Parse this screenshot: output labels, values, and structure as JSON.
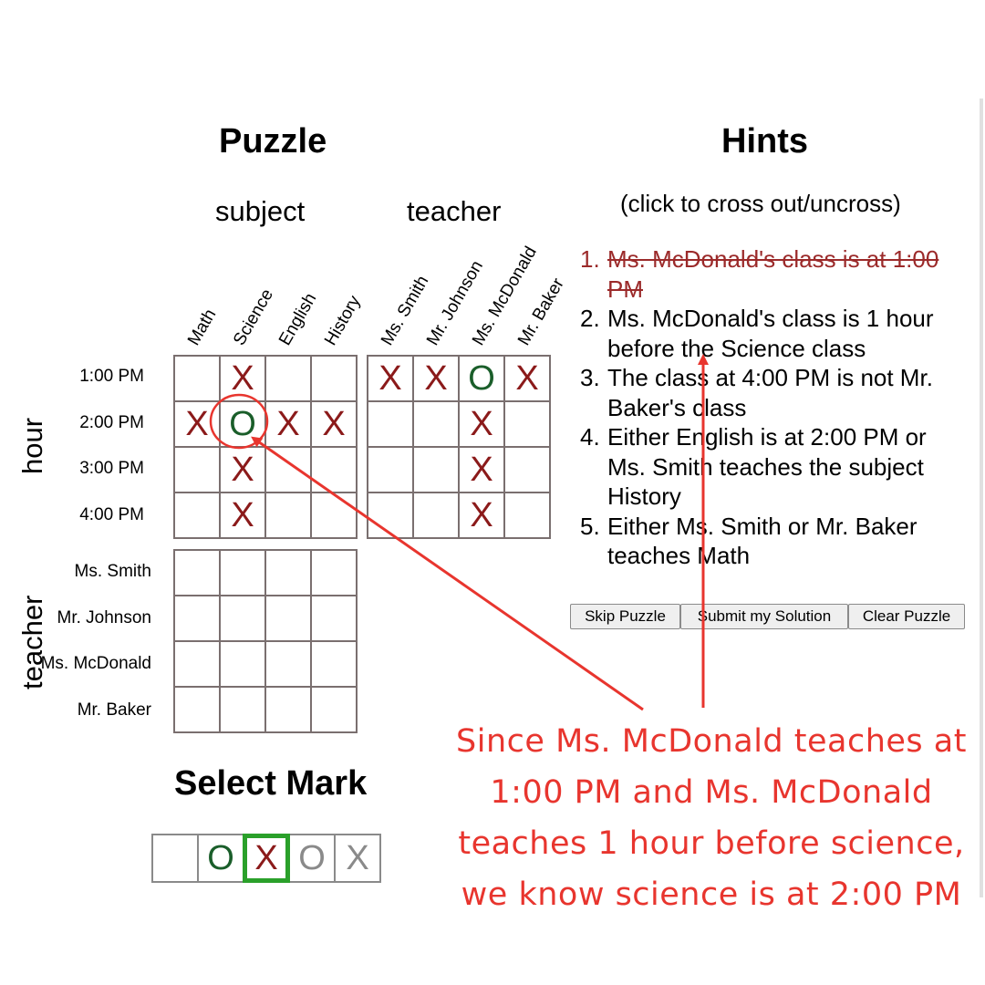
{
  "puzzle": {
    "title": "Puzzle",
    "section_subject": "subject",
    "section_teacher": "teacher",
    "axis_hour": "hour",
    "axis_teacher": "teacher",
    "subject_columns": [
      "Math",
      "Science",
      "English",
      "History"
    ],
    "teacher_columns": [
      "Ms. Smith",
      "Mr. Johnson",
      "Ms. McDonald",
      "Mr. Baker"
    ],
    "hour_rows": [
      "1:00 PM",
      "2:00 PM",
      "3:00 PM",
      "4:00 PM"
    ],
    "teacher_rows": [
      "Ms. Smith",
      "Mr. Johnson",
      "Ms. McDonald",
      "Mr. Baker"
    ],
    "hour_subject_grid": [
      [
        "",
        "X",
        "",
        ""
      ],
      [
        "X",
        "O",
        "X",
        "X"
      ],
      [
        "",
        "X",
        "",
        ""
      ],
      [
        "",
        "X",
        "",
        ""
      ]
    ],
    "hour_teacher_grid": [
      [
        "X",
        "X",
        "O",
        "X"
      ],
      [
        "",
        "",
        "X",
        ""
      ],
      [
        "",
        "",
        "X",
        ""
      ],
      [
        "",
        "",
        "X",
        ""
      ]
    ],
    "teacher_subject_grid": [
      [
        "",
        "",
        "",
        ""
      ],
      [
        "",
        "",
        "",
        ""
      ],
      [
        "",
        "",
        "",
        ""
      ],
      [
        "",
        "",
        "",
        ""
      ]
    ]
  },
  "hints": {
    "title": "Hints",
    "subtitle": "(click to cross out/uncross)",
    "items": [
      {
        "num": "1.",
        "text": "Ms. McDonald's class is at 1:00 PM",
        "crossed": true
      },
      {
        "num": "2.",
        "text": "Ms. McDonald's class is 1 hour before the Science class",
        "crossed": false
      },
      {
        "num": "3.",
        "text": "The class at 4:00 PM is not Mr. Baker's class",
        "crossed": false
      },
      {
        "num": "4.",
        "text": "Either English is at 2:00 PM or Ms. Smith teaches the subject History",
        "crossed": false
      },
      {
        "num": "5.",
        "text": "Either Ms. Smith or Mr. Baker teaches Math",
        "crossed": false
      }
    ]
  },
  "buttons": {
    "skip": "Skip Puzzle",
    "submit": "Submit my Solution",
    "clear": "Clear Puzzle"
  },
  "select_mark": {
    "title": "Select Mark",
    "options": [
      {
        "symbol": "",
        "color": "#000000"
      },
      {
        "symbol": "O",
        "color": "#1a5e2a"
      },
      {
        "symbol": "X",
        "color": "#8b1a1a"
      },
      {
        "symbol": "O",
        "color": "#8a8a8a"
      },
      {
        "symbol": "X",
        "color": "#8a8a8a"
      }
    ],
    "selected_index": 2,
    "selected_color": "#2aa02a"
  },
  "annotation": {
    "text": "Since Ms. McDonald teaches at 1:00 PM and Ms. McDonald teaches 1 hour before science, we know science is at 2:00 PM",
    "color": "#e8352e"
  }
}
